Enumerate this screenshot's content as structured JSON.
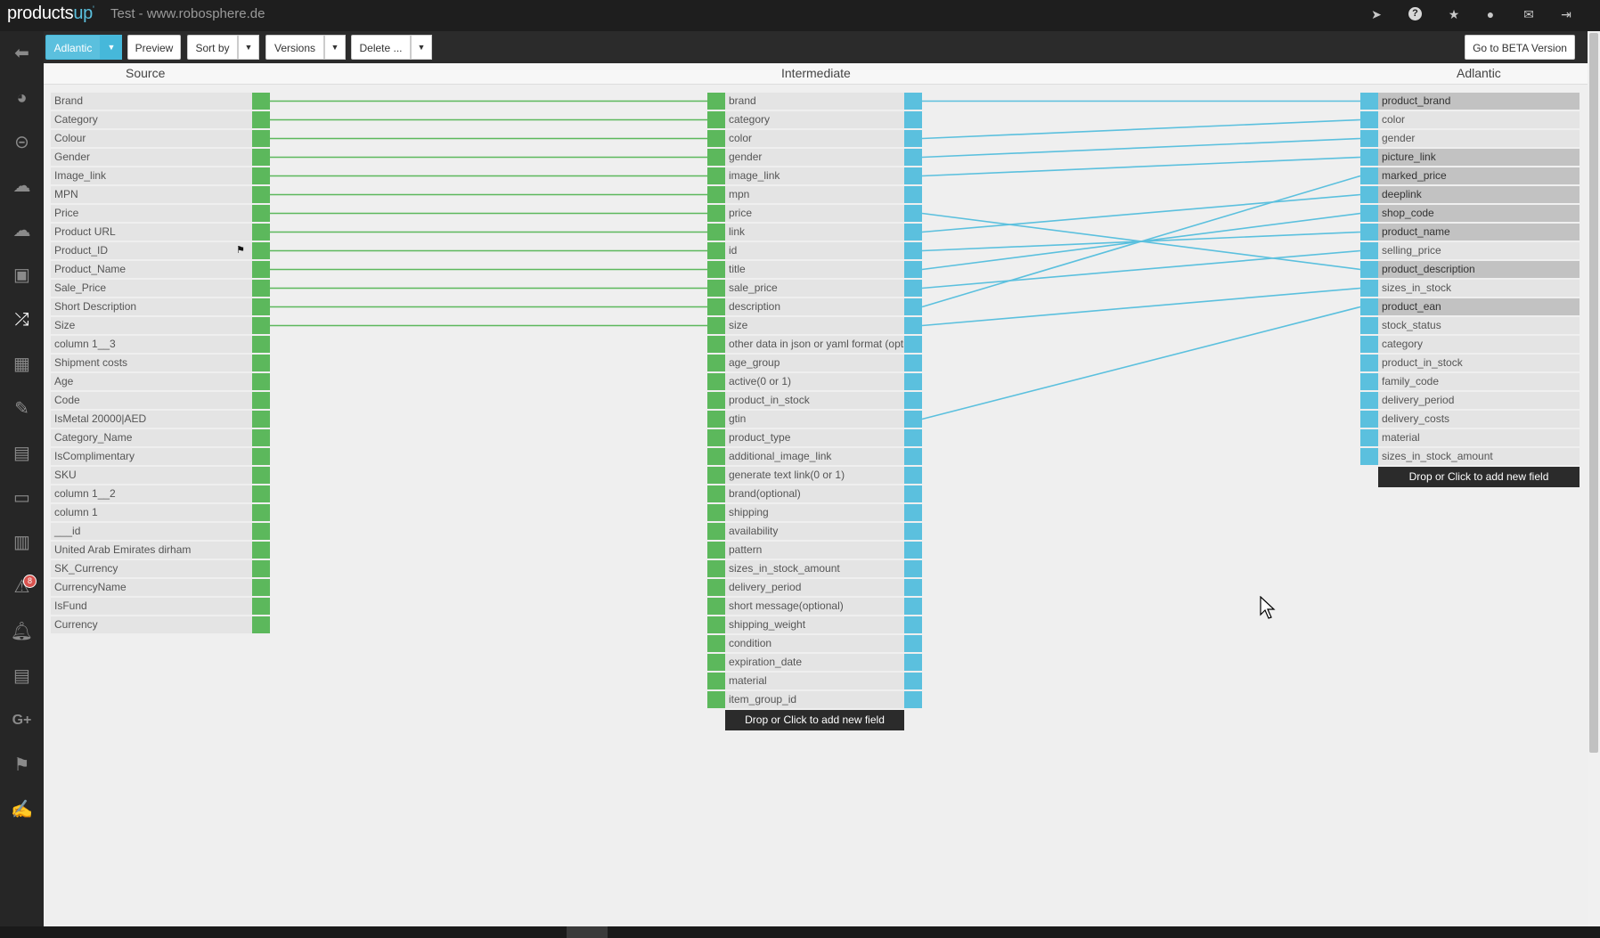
{
  "app": {
    "logo_main": "products",
    "logo_accent": "up",
    "logo_sup": "'",
    "site_title": "Test - www.robosphere.de"
  },
  "top_icons": [
    "location-arrow-icon",
    "help-icon",
    "star-icon",
    "user-icon",
    "envelope-icon",
    "logout-icon"
  ],
  "sidebar_icons": [
    "back-arrow-icon",
    "dashboard-icon",
    "lock-icon",
    "cloud-download-icon",
    "cloud-upload-icon",
    "dataview-icon",
    "shuffle-icon",
    "table-icon",
    "pencil-icon",
    "book-icon",
    "money-icon",
    "chart-icon",
    "warning-icon",
    "bell-icon",
    "book2-icon",
    "google-plus-icon",
    "flag-icon",
    "edit-icon"
  ],
  "notification_count": "8",
  "toolbar": {
    "export_label": "Adlantic",
    "preview_label": "Preview",
    "sortby_label": "Sort by",
    "versions_label": "Versions",
    "delete_label": "Delete ...",
    "beta_label": "Go to BETA Version"
  },
  "columns": {
    "source": "Source",
    "intermediate": "Intermediate",
    "export": "Adlantic"
  },
  "source_fields": [
    "Brand",
    "Category",
    "Colour",
    "Gender",
    "Image_link",
    "MPN",
    "Price",
    "Product URL",
    "Product_ID",
    "Product_Name",
    "Sale_Price",
    "Short Description",
    "Size",
    "column 1__3",
    "Shipment costs",
    "Age",
    "Code",
    "IsMetal 20000|AED",
    "Category_Name",
    "IsComplimentary",
    "SKU",
    "column 1__2",
    "column 1",
    "___id",
    "United Arab Emirates dirham",
    "SK_Currency",
    "CurrencyName",
    "IsFund",
    "Currency"
  ],
  "intermediate_fields": [
    "brand",
    "category",
    "color",
    "gender",
    "image_link",
    "mpn",
    "price",
    "link",
    "id",
    "title",
    "sale_price",
    "description",
    "size",
    "other data in json or yaml format (optional)",
    "age_group",
    "active(0 or 1)",
    "product_in_stock",
    "gtin",
    "product_type",
    "additional_image_link",
    "generate text link(0 or 1)",
    "brand(optional)",
    "shipping",
    "availability",
    "pattern",
    "sizes_in_stock_amount",
    "delivery_period",
    "short message(optional)",
    "shipping_weight",
    "condition",
    "expiration_date",
    "material",
    "item_group_id"
  ],
  "export_fields": [
    "product_brand",
    "color",
    "gender",
    "picture_link",
    "marked_price",
    "deeplink",
    "shop_code",
    "product_name",
    "selling_price",
    "product_description",
    "sizes_in_stock",
    "product_ean",
    "stock_status",
    "category",
    "product_in_stock",
    "family_code",
    "delivery_period",
    "delivery_costs",
    "material",
    "sizes_in_stock_amount"
  ],
  "export_highlighted": [
    0,
    3,
    4,
    5,
    6,
    7,
    9,
    11
  ],
  "source_links": [
    [
      0,
      0
    ],
    [
      1,
      1
    ],
    [
      2,
      2
    ],
    [
      3,
      3
    ],
    [
      4,
      4
    ],
    [
      5,
      5
    ],
    [
      6,
      6
    ],
    [
      7,
      7
    ],
    [
      8,
      8
    ],
    [
      9,
      9
    ],
    [
      10,
      10
    ],
    [
      11,
      11
    ],
    [
      12,
      12
    ]
  ],
  "export_links": [
    [
      0,
      0
    ],
    [
      2,
      1
    ],
    [
      3,
      2
    ],
    [
      4,
      3
    ],
    [
      6,
      9
    ],
    [
      7,
      5
    ],
    [
      8,
      7
    ],
    [
      9,
      6
    ],
    [
      10,
      8
    ],
    [
      11,
      4
    ],
    [
      12,
      10
    ],
    [
      17,
      11
    ]
  ],
  "flagged_source_index": 8,
  "add_field_label": "Drop or Click to add new field",
  "colors": {
    "source_link": "#5cb85c",
    "export_link": "#5bc0de"
  }
}
